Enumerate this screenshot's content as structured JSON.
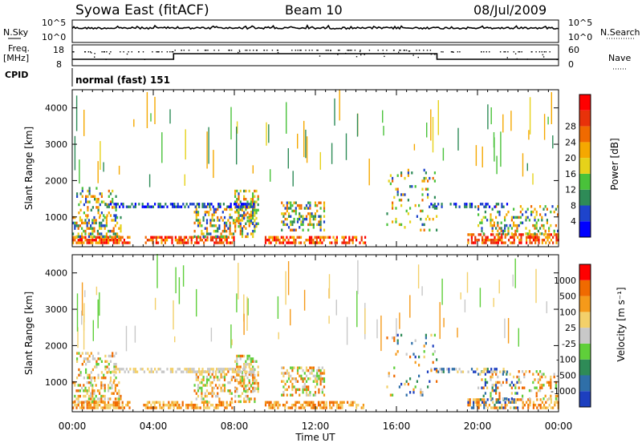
{
  "header": {
    "station": "Syowa East (fitACF)",
    "beam": "Beam 10",
    "date": "08/Jul/2009"
  },
  "top_panels": {
    "nsky_label": "N.Sky",
    "nsky_ticks": [
      "10^5",
      "10^0"
    ],
    "nsearch_label": "N.Search",
    "nsearch_ticks": [
      "10^5",
      "10^0"
    ],
    "freq_label_1": "Freq.",
    "freq_label_2": "[MHz]",
    "freq_ticks": [
      "18",
      "8"
    ],
    "nave_label": "Nave",
    "nave_ticks": [
      "60",
      "0"
    ],
    "cpid_label": "CPID",
    "cpid_value": "normal (fast) 151"
  },
  "chart_data": [
    {
      "type": "heatmap",
      "name": "power",
      "ylabel": "Slant Range [km]",
      "xlabel": "Time UT",
      "y_ticks": [
        "1000",
        "2000",
        "3000",
        "4000"
      ],
      "ylim": [
        180,
        4500
      ],
      "x_ticks": [
        "00:00",
        "04:00",
        "08:00",
        "12:00",
        "16:00",
        "20:00",
        "00:00"
      ],
      "xlim_hours": [
        0,
        24
      ],
      "colorbar": {
        "label": "Power [dB]",
        "ticks": [
          "4",
          "8",
          "12",
          "16",
          "20",
          "24",
          "28"
        ],
        "colors": [
          "#0000ff",
          "#1e44cc",
          "#2e8b57",
          "#49c23a",
          "#e6d21a",
          "#f5a800",
          "#f06a00",
          "#e8320a",
          "#ff0000"
        ]
      }
    },
    {
      "type": "heatmap",
      "name": "velocity",
      "ylabel": "Slant Range [km]",
      "xlabel": "Time UT",
      "y_ticks": [
        "1000",
        "2000",
        "3000",
        "4000"
      ],
      "ylim": [
        180,
        4500
      ],
      "x_ticks": [
        "00:00",
        "04:00",
        "08:00",
        "12:00",
        "16:00",
        "20:00",
        "00:00"
      ],
      "xlim_hours": [
        0,
        24
      ],
      "colorbar": {
        "label": "Velocity [m s⁻¹]",
        "ticks": [
          "1000",
          "500",
          "100",
          "25",
          "-25",
          "-100",
          "-500",
          "-1000"
        ],
        "colors": [
          "#1d3fbf",
          "#2f6fa8",
          "#2e8b57",
          "#5fcf3a",
          "#c8c8c8",
          "#f3d06a",
          "#f59a1a",
          "#f06a00",
          "#ff0000"
        ]
      }
    }
  ]
}
